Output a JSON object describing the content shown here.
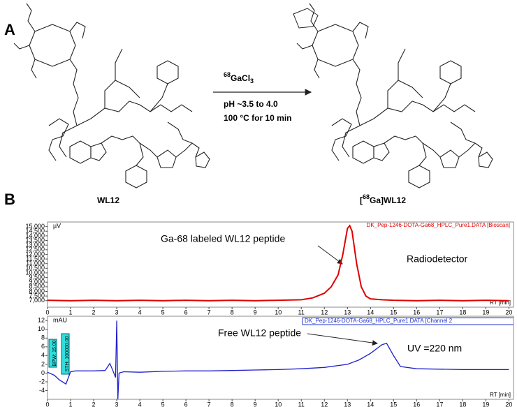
{
  "panel_a": {
    "label": "A",
    "reagent_isotope": "68",
    "reagent_formula": "GaCl",
    "reagent_subscript": "3",
    "conditions": [
      "pH ~3.5 to 4.0",
      "100 °C for 10 min"
    ],
    "reactant": "WL12",
    "product_open": "[",
    "product_isotope": "68",
    "product_name": "Ga]WL12"
  },
  "panel_b": {
    "label": "B"
  },
  "chart_data": [
    {
      "type": "line",
      "y_label": "µV",
      "x_label": "RT [min]",
      "data_file": "DK_Pep-1246-DOTA-Ga68_HPLC_Pure1.DATA [Bioscan]",
      "annotations": [
        "Ga-68 labeled WL12 peptide",
        "Radiodetector"
      ],
      "xlim": [
        0,
        20.2
      ],
      "xticks": [
        0,
        1,
        2,
        3,
        4,
        5,
        6,
        7,
        8,
        9,
        10,
        11,
        12,
        13,
        14,
        15,
        16,
        17,
        18,
        19,
        20
      ],
      "ylim": [
        6300,
        15500
      ],
      "yticks": [
        {
          "value": 7000,
          "label": "7,000"
        },
        {
          "value": 7500,
          "label": "7,500"
        },
        {
          "value": 8000,
          "label": "8,000"
        },
        {
          "value": 8500,
          "label": "8,500"
        },
        {
          "value": 9000,
          "label": "9,000"
        },
        {
          "value": 9500,
          "label": "9,500"
        },
        {
          "value": 10000,
          "label": "10,000"
        },
        {
          "value": 10500,
          "label": "10,500"
        },
        {
          "value": 11000,
          "label": "11,000"
        },
        {
          "value": 11500,
          "label": "11,500"
        },
        {
          "value": 12000,
          "label": "12,000"
        },
        {
          "value": 12500,
          "label": "12,500"
        },
        {
          "value": 13000,
          "label": "13,000"
        },
        {
          "value": 13500,
          "label": "13,500"
        },
        {
          "value": 14000,
          "label": "14,000"
        },
        {
          "value": 14500,
          "label": "14,500"
        },
        {
          "value": 15000,
          "label": "15,000"
        }
      ],
      "series": [
        {
          "color": "#e00000",
          "x": [
            0,
            1,
            2,
            3,
            4,
            5,
            6,
            7,
            8,
            9,
            10,
            11,
            11.5,
            12,
            12.3,
            12.6,
            12.8,
            13.0,
            13.1,
            13.2,
            13.4,
            13.6,
            13.8,
            14,
            14.5,
            15,
            16,
            17,
            18,
            19,
            20
          ],
          "values": [
            7050,
            7000,
            7050,
            7000,
            7050,
            7000,
            7050,
            7000,
            7050,
            7000,
            7050,
            7100,
            7300,
            7800,
            8500,
            9800,
            12000,
            14800,
            15100,
            14500,
            11000,
            8500,
            7500,
            7200,
            7100,
            7050,
            7000,
            7050,
            7000,
            7050,
            7000
          ]
        }
      ]
    },
    {
      "type": "line",
      "y_label": "mAU",
      "x_label": "RT [min]",
      "data_file": "DK_Pep-1246-DOTA-Ga68_HPLC_Pure1.DATA [Channel 2",
      "annotations": [
        "Free WL12 peptide",
        "UV =220 nm"
      ],
      "params": [
        "BPW: 15.00",
        "STH: 100000.00"
      ],
      "xlim": [
        0,
        20.2
      ],
      "xticks": [
        0,
        1,
        2,
        3,
        4,
        5,
        6,
        7,
        8,
        9,
        10,
        11,
        12,
        13,
        14,
        15,
        16,
        17,
        18,
        19,
        20
      ],
      "ylim": [
        -6,
        13
      ],
      "yticks": [
        -4,
        -2,
        0,
        2,
        4,
        6,
        8,
        10,
        12
      ],
      "series": [
        {
          "color": "#2020cc",
          "x": [
            0,
            0.3,
            0.5,
            0.8,
            1.0,
            1.2,
            2,
            2.5,
            2.7,
            2.8,
            2.95,
            3.0,
            3.05,
            3.1,
            3.3,
            4,
            5,
            6,
            7,
            8,
            9,
            10,
            11,
            12,
            13,
            13.5,
            14,
            14.5,
            14.7,
            15,
            15.3,
            16,
            17,
            18,
            19,
            20
          ],
          "values": [
            0.2,
            -0.5,
            -1.5,
            -2.5,
            0.3,
            0.5,
            0.5,
            0.6,
            2.2,
            1,
            -1,
            12,
            -6,
            0,
            0.3,
            0.2,
            0.4,
            0.5,
            0.5,
            0.6,
            0.7,
            0.8,
            1.0,
            1.3,
            2.0,
            3.0,
            4.5,
            6.5,
            6.8,
            4,
            1.5,
            1.0,
            0.9,
            0.8,
            0.8,
            0.8
          ]
        }
      ]
    }
  ]
}
